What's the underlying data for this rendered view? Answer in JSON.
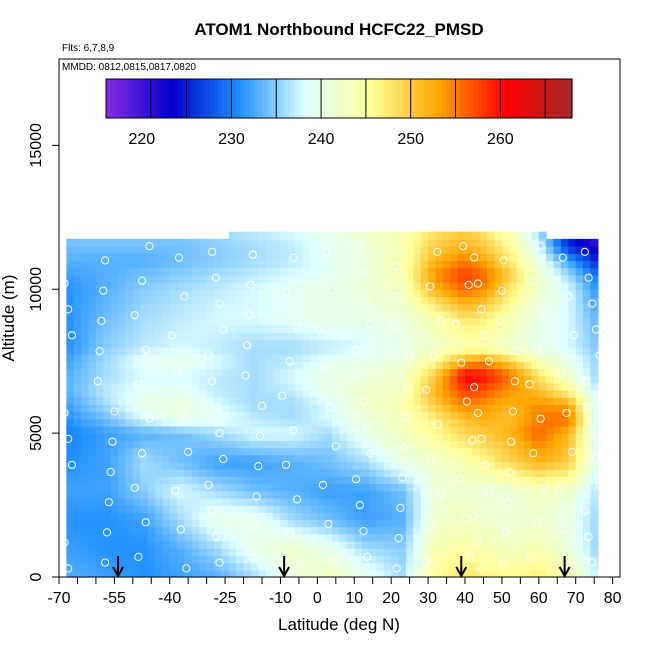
{
  "chart_data": {
    "type": "heatmap",
    "title": "ATOM1 Northbound HCFC22_PMSD",
    "subtitle_flights": "Flts: 6,7,8,9",
    "subtitle_dates": "MMDD: 0812,0815,0817,0820",
    "xlabel": "Latitude (deg N)",
    "ylabel": "Altitude (m)",
    "xlim": [
      -70,
      82
    ],
    "ylim": [
      0,
      18000
    ],
    "x_ticks": [
      -70,
      -55,
      -40,
      -25,
      -10,
      0,
      10,
      20,
      30,
      40,
      50,
      60,
      70,
      80
    ],
    "x_minor_ticks": [
      -65,
      -60,
      -50,
      -45,
      -35,
      -30,
      -20,
      -15,
      -5,
      5,
      15,
      25,
      35,
      45,
      55,
      65,
      75
    ],
    "y_ticks": [
      0,
      5000,
      10000,
      15000
    ],
    "colorbar": {
      "min": 216,
      "max": 268,
      "ticks": [
        220,
        230,
        240,
        250,
        260
      ],
      "tick_labels": [
        "220",
        "230",
        "240",
        "250",
        "260"
      ],
      "boundaries": [
        221,
        225,
        230,
        235,
        240,
        245,
        250,
        255,
        260,
        265
      ],
      "colors": [
        "#8a2be2",
        "#0000cd",
        "#1e90ff",
        "#e0ffff",
        "#ffff99",
        "#ffa500",
        "#ff0000",
        "#a52a2a"
      ]
    },
    "flight_transect_arrows_lat": [
      -54,
      -9,
      39,
      67
    ],
    "profile_latitudes": [
      -68,
      -57,
      -47,
      -37,
      -27,
      -17,
      -7,
      3,
      13,
      23,
      32,
      40,
      45,
      52,
      60,
      68,
      75
    ],
    "altitude_levels_m": [
      0,
      1000,
      2000,
      3000,
      4000,
      5000,
      5500,
      6000,
      6500,
      7000,
      7500,
      8000,
      9000,
      10000,
      10500,
      11000,
      11500,
      12000
    ],
    "values": [
      [
        233,
        232,
        231,
        232,
        233,
        236,
        240,
        243,
        240,
        236,
        246,
        248,
        247,
        246,
        247,
        245,
        238
      ],
      [
        232,
        231,
        231,
        233,
        236,
        240,
        242,
        240,
        236,
        235,
        244,
        245,
        244,
        243,
        244,
        241,
        236
      ],
      [
        231,
        231,
        232,
        236,
        240,
        240,
        236,
        234,
        232,
        233,
        242,
        243,
        242,
        241,
        242,
        240,
        236
      ],
      [
        232,
        232,
        235,
        238,
        236,
        234,
        233,
        232,
        232,
        234,
        241,
        242,
        241,
        241,
        243,
        242,
        237
      ],
      [
        231,
        232,
        236,
        234,
        232,
        232,
        233,
        234,
        236,
        240,
        242,
        244,
        246,
        249,
        252,
        250,
        240
      ],
      [
        230,
        232,
        233,
        234,
        236,
        238,
        238,
        236,
        240,
        243,
        246,
        249,
        250,
        252,
        256,
        252,
        240
      ],
      [
        231,
        234,
        238,
        240,
        239,
        237,
        236,
        238,
        241,
        243,
        247,
        251,
        252,
        251,
        255,
        256,
        240
      ],
      [
        232,
        236,
        240,
        241,
        238,
        236,
        236,
        238,
        242,
        244,
        250,
        255,
        254,
        252,
        254,
        253,
        240
      ],
      [
        233,
        237,
        239,
        239,
        237,
        236,
        237,
        240,
        242,
        243,
        252,
        258,
        257,
        254,
        251,
        246,
        238
      ],
      [
        233,
        236,
        238,
        238,
        237,
        236,
        238,
        240,
        241,
        242,
        250,
        261,
        260,
        256,
        248,
        242,
        236
      ],
      [
        232,
        236,
        239,
        240,
        238,
        236,
        237,
        239,
        240,
        241,
        246,
        253,
        254,
        250,
        244,
        240,
        236
      ],
      [
        231,
        235,
        237,
        238,
        237,
        236,
        236,
        237,
        238,
        240,
        242,
        244,
        244,
        242,
        240,
        238,
        235
      ],
      [
        231,
        234,
        236,
        237,
        238,
        238,
        239,
        240,
        240,
        241,
        244,
        248,
        247,
        244,
        240,
        238,
        234
      ],
      [
        231,
        233,
        235,
        236,
        237,
        238,
        239,
        240,
        241,
        243,
        252,
        256,
        254,
        248,
        242,
        238,
        232
      ],
      [
        232,
        233,
        234,
        235,
        236,
        237,
        238,
        239,
        241,
        244,
        254,
        258,
        256,
        250,
        242,
        236,
        230
      ],
      [
        233,
        233,
        233,
        234,
        235,
        236,
        237,
        239,
        241,
        244,
        252,
        255,
        253,
        248,
        240,
        232,
        226
      ],
      [
        234,
        234,
        234,
        234,
        235,
        236,
        237,
        239,
        241,
        244,
        250,
        252,
        250,
        246,
        238,
        226,
        222
      ],
      [
        235,
        235,
        235,
        235,
        236,
        237,
        238,
        240,
        242,
        244,
        248,
        250,
        248,
        244,
        236,
        224,
        219
      ]
    ],
    "grid": false,
    "legend_placement": "top"
  }
}
